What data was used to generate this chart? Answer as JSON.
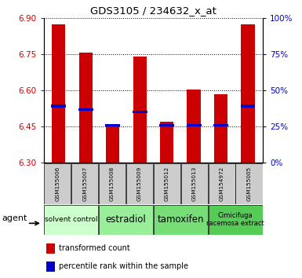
{
  "title": "GDS3105 / 234632_x_at",
  "samples": [
    "GSM155006",
    "GSM155007",
    "GSM155008",
    "GSM155009",
    "GSM155012",
    "GSM155013",
    "GSM154972",
    "GSM155005"
  ],
  "bar_tops": [
    6.875,
    6.755,
    6.455,
    6.74,
    6.47,
    6.605,
    6.585,
    6.875
  ],
  "bar_bottom": 6.3,
  "percentile_values": [
    6.535,
    6.52,
    6.455,
    6.51,
    6.455,
    6.455,
    6.455,
    6.535
  ],
  "ylim": [
    6.3,
    6.9
  ],
  "yticks_left": [
    6.3,
    6.45,
    6.6,
    6.75,
    6.9
  ],
  "yticks_right": [
    0,
    25,
    50,
    75,
    100
  ],
  "bar_color": "#cc0000",
  "percentile_color": "#0000cc",
  "agent_groups": [
    {
      "label": "solvent control",
      "start": 0,
      "end": 2,
      "color": "#ccffcc",
      "fontsize": 6.5
    },
    {
      "label": "estradiol",
      "start": 2,
      "end": 4,
      "color": "#99ee99",
      "fontsize": 8.5
    },
    {
      "label": "tamoxifen",
      "start": 4,
      "end": 6,
      "color": "#77dd77",
      "fontsize": 8.5
    },
    {
      "label": "Cimicifuga\nracemosa extract",
      "start": 6,
      "end": 8,
      "color": "#55cc55",
      "fontsize": 6.0
    }
  ],
  "ylabel_left_color": "#cc0000",
  "ylabel_right_color": "#0000cc",
  "bar_width": 0.5,
  "sample_bg": "#cccccc"
}
